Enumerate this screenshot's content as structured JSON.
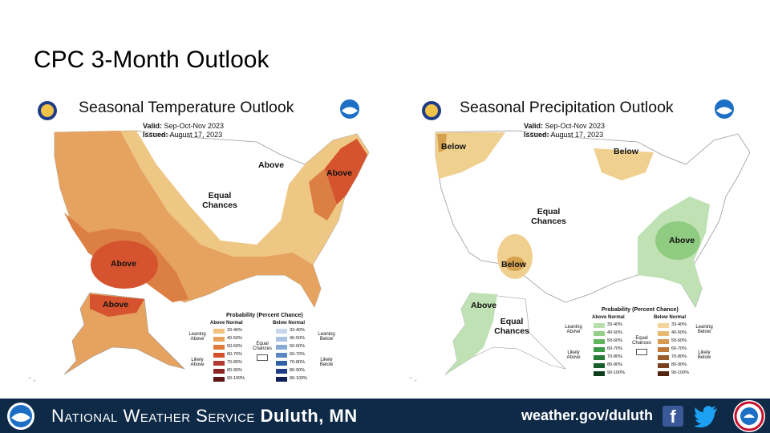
{
  "slide": {
    "title": "CPC 3-Month Outlook"
  },
  "temperature_map": {
    "title": "Seasonal Temperature Outlook",
    "valid_label": "Valid:",
    "valid_value": "Sep-Oct-Nov 2023",
    "issued_label": "Issued:",
    "issued_value": "August 17, 2023",
    "regions": [
      {
        "label": "Above",
        "category": "above"
      },
      {
        "label": "Above",
        "category": "above"
      },
      {
        "label": "Above",
        "category": "above"
      },
      {
        "label": "Above",
        "category": "above"
      },
      {
        "label": "Equal Chances",
        "category": "equal"
      }
    ]
  },
  "precipitation_map": {
    "title": "Seasonal Precipitation Outlook",
    "valid_label": "Valid:",
    "valid_value": "Sep-Oct-Nov 2023",
    "issued_label": "Issued:",
    "issued_value": "August 17, 2023",
    "regions": [
      {
        "label": "Below",
        "category": "below"
      },
      {
        "label": "Below",
        "category": "below"
      },
      {
        "label": "Below",
        "category": "below"
      },
      {
        "label": "Above",
        "category": "above"
      },
      {
        "label": "Above",
        "category": "above"
      },
      {
        "label": "Equal Chances",
        "category": "equal"
      },
      {
        "label": "Equal Chances",
        "category": "equal"
      }
    ]
  },
  "legend": {
    "title": "Probability (Percent Chance)",
    "ranges": [
      "33-40%",
      "40-50%",
      "50-60%",
      "60-70%",
      "70-80%",
      "80-90%",
      "90-100%"
    ],
    "equal_chances": "Equal Chances",
    "temperature": {
      "above_header": "Above Normal",
      "below_header": "Below Normal",
      "leaning_above": "Leaning Above",
      "likely_above": "Likely Above",
      "leaning_below": "Leaning Below",
      "likely_below": "Likely Below",
      "above_colors": [
        "#f1c27d",
        "#e9a15c",
        "#e07a3c",
        "#d2512c",
        "#b03a2e",
        "#8b2525",
        "#5c1616"
      ],
      "below_colors": [
        "#c8d5ea",
        "#a9c1e4",
        "#86a9d8",
        "#5a86c3",
        "#2f5fa7",
        "#1f3c86",
        "#121f57"
      ]
    },
    "precipitation": {
      "above_header": "Above Normal",
      "below_header": "Below Normal",
      "leaning_above": "Leaning Above",
      "likely_above": "Likely Above",
      "leaning_below": "Leaning Below",
      "likely_below": "Likely Below",
      "above_colors": [
        "#b7dfae",
        "#93cf86",
        "#5fb55c",
        "#3c9a48",
        "#277a37",
        "#175e2a",
        "#0b3f1b"
      ],
      "below_colors": [
        "#f1d59b",
        "#e6b871",
        "#d89a51",
        "#bf7a3b",
        "#9c5b2a",
        "#7a401d",
        "#512511"
      ]
    }
  },
  "colors": {
    "temp_above_light": "#efc785",
    "temp_above_mid": "#e6a25f",
    "temp_above_strong": "#dc6f3a",
    "temp_above_peak": "#d14a2b",
    "precip_below": "#f0d08f",
    "precip_below_strong": "#d4a24e",
    "precip_above": "#bfe1b3",
    "precip_above_strong": "#8fcb80",
    "footer_bg": "#0e2a47"
  },
  "footer": {
    "agency": "National Weather Service",
    "office": "Duluth, MN",
    "website": "weather.gov/duluth",
    "facebook_icon": "facebook-icon",
    "twitter_icon": "twitter-icon"
  }
}
